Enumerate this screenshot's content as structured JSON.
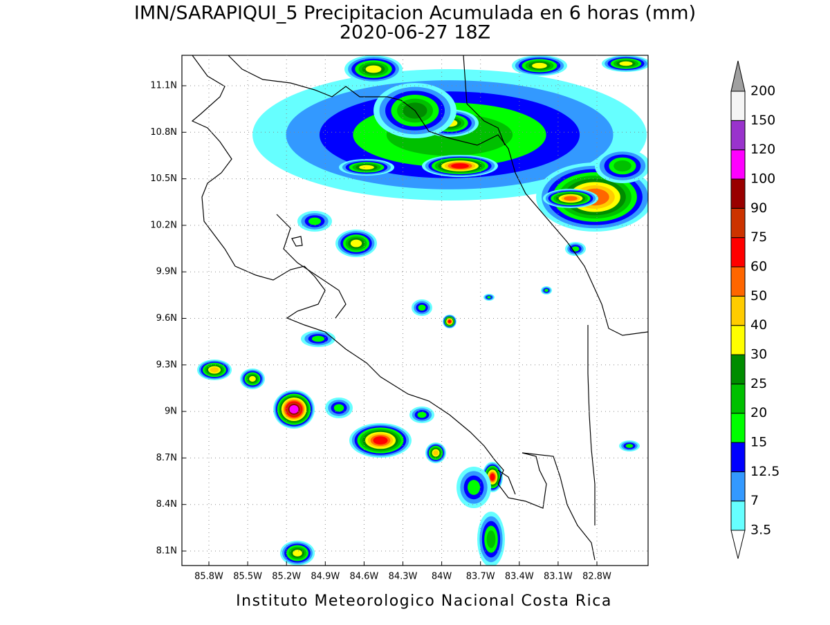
{
  "title": "IMN/SARAPIQUI_5 Precipitacion Acumulada en 6 horas (mm)",
  "subtitle": "2020-06-27 18Z",
  "footer": "Instituto Meteorologico Nacional Costa Rica",
  "map": {
    "lon_ticks": [
      "85.8W",
      "85.5W",
      "85.2W",
      "84.9W",
      "84.6W",
      "84.3W",
      "84W",
      "83.7W",
      "83.4W",
      "83.1W",
      "82.8W"
    ],
    "lat_ticks": [
      "11.1N",
      "10.8N",
      "10.5N",
      "10.2N",
      "9.9N",
      "9.6N",
      "9.3N",
      "9N",
      "8.7N",
      "8.4N",
      "8.1N"
    ]
  },
  "colorbar": {
    "levels": [
      3.5,
      7,
      12.5,
      15,
      20,
      25,
      30,
      40,
      50,
      60,
      75,
      90,
      100,
      120,
      150,
      200
    ],
    "colors": [
      "#ffffff",
      "#66ffff",
      "#3399ff",
      "#0000ff",
      "#00ff00",
      "#00c000",
      "#008c00",
      "#ffff00",
      "#ffcc00",
      "#ff6600",
      "#ff0000",
      "#cc3300",
      "#990000",
      "#ff00ff",
      "#9933cc",
      "#f5f5f5",
      "#a0a0a0"
    ]
  }
}
